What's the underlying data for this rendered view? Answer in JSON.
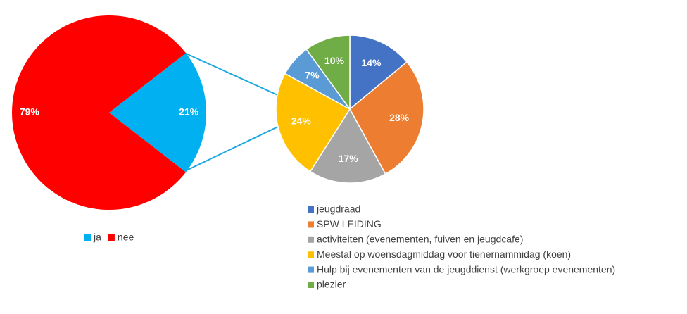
{
  "chart_data": [
    {
      "type": "pie",
      "categories": [
        "ja",
        "nee"
      ],
      "values": [
        21,
        79
      ],
      "value_labels": [
        "21%",
        "79%"
      ],
      "colors": [
        "#00b0f0",
        "#ff0000"
      ],
      "legend": "bottom"
    },
    {
      "type": "pie",
      "categories": [
        "jeugdraad",
        "SPW LEIDING",
        "activiteiten (evenementen, fuiven en jeugdcafe)",
        "Meestal op woensdagmiddag voor tienernammidag (koen)",
        "Hulp bij evenementen van de jeugddienst (werkgroep evenementen)",
        "plezier"
      ],
      "values": [
        14,
        28,
        17,
        24,
        7,
        10
      ],
      "value_labels": [
        "14%",
        "28%",
        "17%",
        "24%",
        "7%",
        "10%"
      ],
      "colors": [
        "#4472c4",
        "#ed7d31",
        "#a5a5a5",
        "#ffc000",
        "#5b9bd5",
        "#70ad47"
      ],
      "legend": "bottom"
    }
  ]
}
